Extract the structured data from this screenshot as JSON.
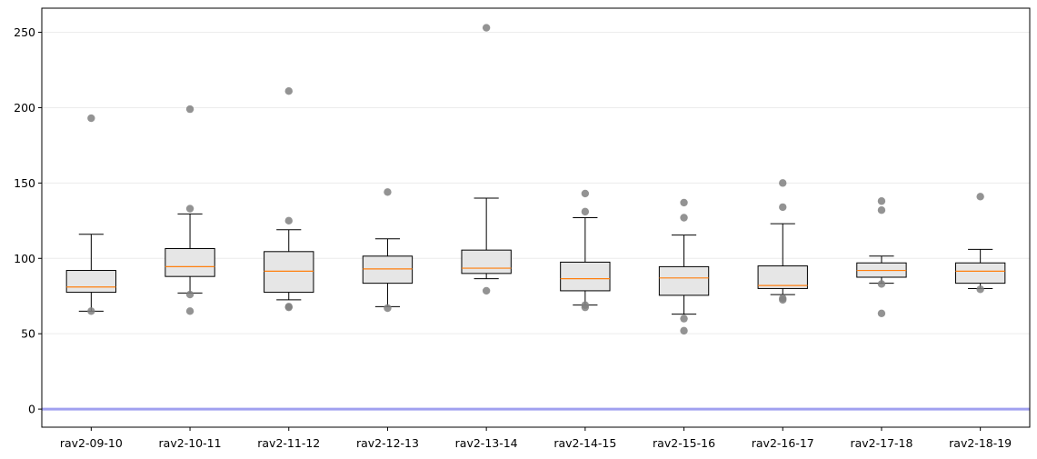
{
  "chart_data": {
    "type": "box",
    "title": "",
    "xlabel": "",
    "ylabel": "",
    "ylim": [
      -12,
      266
    ],
    "yticks": [
      0,
      50,
      100,
      150,
      200,
      250
    ],
    "grid": "y",
    "reference_line": {
      "y": 0,
      "color": "#a0a0f0"
    },
    "colors": {
      "box_fill": "#e6e6e6",
      "median": "#ff7f0e",
      "outlier": "#808080",
      "frame": "#000000"
    },
    "categories": [
      "rav2-09-10",
      "rav2-10-11",
      "rav2-11-12",
      "rav2-12-13",
      "rav2-13-14",
      "rav2-14-15",
      "rav2-15-16",
      "rav2-16-17",
      "rav2-17-18",
      "rav2-18-19"
    ],
    "boxes": [
      {
        "whislo": 65,
        "q1": 77.5,
        "med": 81,
        "q3": 92,
        "whishi": 116,
        "fliers": [
          193,
          65
        ]
      },
      {
        "whislo": 77,
        "q1": 88,
        "med": 94.5,
        "q3": 106.5,
        "whishi": 129.5,
        "fliers": [
          199,
          133,
          76,
          65
        ]
      },
      {
        "whislo": 72.5,
        "q1": 77.5,
        "med": 91.5,
        "q3": 104.5,
        "whishi": 119,
        "fliers": [
          211,
          125,
          68,
          67.5
        ]
      },
      {
        "whislo": 68,
        "q1": 83.5,
        "med": 93,
        "q3": 101.5,
        "whishi": 113,
        "fliers": [
          144,
          67
        ]
      },
      {
        "whislo": 86.5,
        "q1": 90,
        "med": 93.5,
        "q3": 105.5,
        "whishi": 140,
        "fliers": [
          253,
          78.5
        ]
      },
      {
        "whislo": 69,
        "q1": 78.5,
        "med": 86.5,
        "q3": 97.5,
        "whishi": 127,
        "fliers": [
          143,
          131,
          69,
          67.5
        ]
      },
      {
        "whislo": 63,
        "q1": 75.5,
        "med": 87,
        "q3": 94.5,
        "whishi": 115.5,
        "fliers": [
          137,
          127,
          60,
          52
        ]
      },
      {
        "whislo": 76,
        "q1": 80,
        "med": 82,
        "q3": 95,
        "whishi": 123,
        "fliers": [
          150,
          134,
          73.5,
          72.5
        ]
      },
      {
        "whislo": 83.5,
        "q1": 87.5,
        "med": 92,
        "q3": 97,
        "whishi": 101.5,
        "fliers": [
          138,
          132,
          83,
          63.5
        ]
      },
      {
        "whislo": 80,
        "q1": 83.5,
        "med": 91.5,
        "q3": 97,
        "whishi": 106,
        "fliers": [
          141,
          79.5
        ]
      }
    ]
  }
}
